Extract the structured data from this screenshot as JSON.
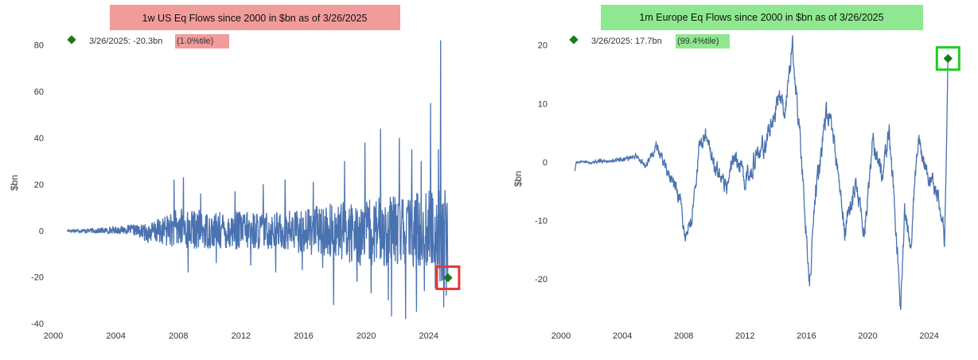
{
  "chart_data": [
    {
      "type": "line",
      "title": "1w US Eq Flows since 2000 in $bn as of 3/26/2025",
      "title_bg": "#f29b9b",
      "ylabel": "$bn",
      "xlabel": "",
      "xlim": [
        2000,
        2026.2
      ],
      "ylim": [
        -41,
        85
      ],
      "xticks": [
        2000,
        2004,
        2008,
        2012,
        2016,
        2020,
        2024
      ],
      "yticks": [
        -40,
        -20,
        0,
        20,
        40,
        60,
        80
      ],
      "series_color": "#4a72b0",
      "grid": false,
      "legend": "top-left",
      "legend_text": "3/26/2025: -20.3bn",
      "legend_pct": "(1.0%tile)",
      "legend_pct_bg": "#f29b9b",
      "marker_color": "#1a7a1a",
      "highlight_box_color": "#e53935",
      "last_point": {
        "x": 2025.23,
        "y": -20.3
      },
      "series": [
        {
          "name": "",
          "anchors": [
            [
              2000.9,
              0
            ],
            [
              2003,
              0
            ],
            [
              2005,
              0.5
            ],
            [
              2006,
              -1
            ],
            [
              2007,
              0
            ],
            [
              2008,
              1
            ],
            [
              2010,
              0
            ],
            [
              2012,
              0
            ],
            [
              2014,
              0
            ],
            [
              2016,
              0
            ],
            [
              2018,
              0
            ],
            [
              2020,
              -1
            ],
            [
              2022,
              0
            ],
            [
              2024,
              0
            ],
            [
              2025,
              -3
            ]
          ],
          "amps": [
            [
              2000.9,
              0.6
            ],
            [
              2003,
              1.2
            ],
            [
              2005,
              2
            ],
            [
              2006,
              4
            ],
            [
              2007,
              6
            ],
            [
              2008,
              9
            ],
            [
              2010,
              8
            ],
            [
              2012,
              8.5
            ],
            [
              2014,
              8
            ],
            [
              2016,
              10
            ],
            [
              2018,
              12
            ],
            [
              2020,
              15
            ],
            [
              2022,
              15
            ],
            [
              2024,
              18
            ],
            [
              2025,
              22
            ]
          ],
          "spikes": [
            [
              2007.7,
              22
            ],
            [
              2008.3,
              23
            ],
            [
              2008.6,
              -18
            ],
            [
              2009.4,
              16
            ],
            [
              2010.4,
              -14
            ],
            [
              2011.6,
              17
            ],
            [
              2012.6,
              -15
            ],
            [
              2013.4,
              20
            ],
            [
              2014.2,
              -18
            ],
            [
              2014.8,
              22
            ],
            [
              2015.9,
              -17
            ],
            [
              2016.6,
              21
            ],
            [
              2017.2,
              -16
            ],
            [
              2017.9,
              -32
            ],
            [
              2018.6,
              30
            ],
            [
              2019.4,
              -22
            ],
            [
              2019.9,
              38
            ],
            [
              2020.3,
              -27
            ],
            [
              2020.9,
              44
            ],
            [
              2021.4,
              -30
            ],
            [
              2021.6,
              -37
            ],
            [
              2022.1,
              40
            ],
            [
              2022.5,
              -38
            ],
            [
              2022.9,
              35
            ],
            [
              2023.2,
              -35
            ],
            [
              2023.5,
              30
            ],
            [
              2023.7,
              -26
            ],
            [
              2024.1,
              55
            ],
            [
              2024.4,
              -25
            ],
            [
              2024.6,
              35
            ],
            [
              2024.75,
              82
            ],
            [
              2024.95,
              -33
            ],
            [
              2025.1,
              -28
            ]
          ],
          "step": 0.02,
          "seed": 17
        }
      ]
    },
    {
      "type": "line",
      "title": "1m Europe Eq Flows since 2000 in $bn as of 3/26/2025",
      "title_bg": "#8fe88f",
      "ylabel": "$bn",
      "xlabel": "",
      "xlim": [
        2000,
        2026.2
      ],
      "ylim": [
        -26,
        22
      ],
      "xticks": [
        2000,
        2004,
        2008,
        2012,
        2016,
        2020,
        2024
      ],
      "yticks": [
        -20,
        -10,
        0,
        10,
        20
      ],
      "series_color": "#4a72b0",
      "grid": false,
      "legend": "top-left",
      "legend_text": "3/26/2025: 17.7bn",
      "legend_pct": "(99.4%tile)",
      "legend_pct_bg": "#8fe88f",
      "marker_color": "#1a7a1a",
      "highlight_box_color": "#22cc22",
      "last_point": {
        "x": 2025.23,
        "y": 17.7
      },
      "series": [
        {
          "name": "",
          "anchors": [
            [
              2000.9,
              -1.5
            ],
            [
              2001.0,
              0
            ],
            [
              2002,
              0
            ],
            [
              2003,
              0.2
            ],
            [
              2004,
              0.5
            ],
            [
              2005,
              1
            ],
            [
              2005.5,
              -1
            ],
            [
              2006.2,
              3
            ],
            [
              2007,
              -2
            ],
            [
              2007.8,
              -7
            ],
            [
              2008.1,
              -13
            ],
            [
              2008.5,
              -10
            ],
            [
              2009,
              2
            ],
            [
              2009.5,
              5
            ],
            [
              2010,
              -1
            ],
            [
              2010.7,
              -5
            ],
            [
              2011.3,
              1
            ],
            [
              2012,
              -3
            ],
            [
              2012.6,
              0
            ],
            [
              2013.3,
              3
            ],
            [
              2013.9,
              8
            ],
            [
              2014.2,
              12
            ],
            [
              2014.6,
              9
            ],
            [
              2015.1,
              20
            ],
            [
              2015.5,
              7
            ],
            [
              2015.9,
              -8
            ],
            [
              2016.2,
              -21
            ],
            [
              2016.6,
              -5
            ],
            [
              2017.3,
              8
            ],
            [
              2017.8,
              4
            ],
            [
              2018.2,
              -6
            ],
            [
              2018.5,
              -12
            ],
            [
              2019.2,
              -4
            ],
            [
              2019.8,
              -12
            ],
            [
              2020.3,
              3
            ],
            [
              2020.9,
              -2
            ],
            [
              2021.4,
              5
            ],
            [
              2021.8,
              -10
            ],
            [
              2022.15,
              -25
            ],
            [
              2022.4,
              -8
            ],
            [
              2022.8,
              -14
            ],
            [
              2023.3,
              4
            ],
            [
              2023.8,
              -2
            ],
            [
              2024.5,
              -5
            ],
            [
              2024.9,
              -10
            ],
            [
              2025.0,
              -15
            ],
            [
              2025.1,
              -2
            ],
            [
              2025.23,
              17.7
            ]
          ],
          "amps": [
            [
              2000.9,
              0.2
            ],
            [
              2005,
              0.6
            ],
            [
              2007,
              1.5
            ],
            [
              2010,
              2.2
            ],
            [
              2014,
              2.5
            ],
            [
              2020,
              2.5
            ],
            [
              2024.9,
              2
            ],
            [
              2025.1,
              0
            ]
          ],
          "spikes": [],
          "step": 0.02,
          "seed": 5
        }
      ]
    }
  ]
}
